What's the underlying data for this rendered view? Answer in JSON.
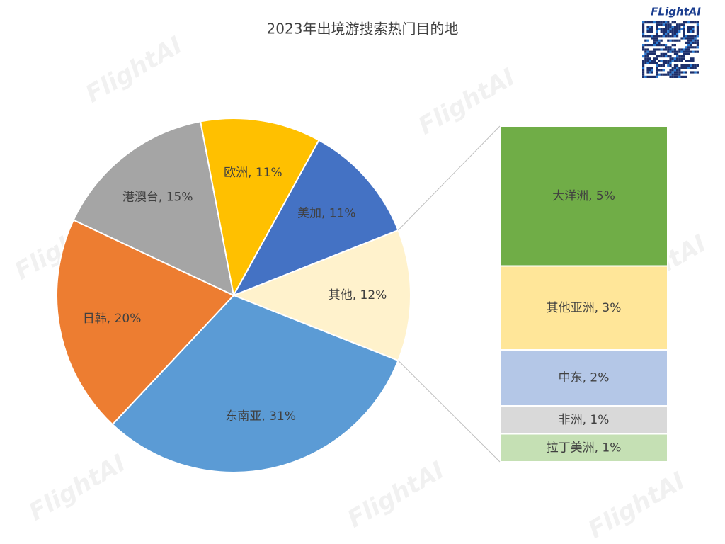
{
  "chart_data": {
    "type": "pie-of-bar",
    "title": "2023年出境游搜索热门目的地",
    "pie": {
      "values": [
        12,
        31,
        20,
        15,
        11,
        11
      ],
      "value_labels": [
        "其他, 12%",
        "东南亚, 31%",
        "日韩, 20%",
        "港澳台, 15%",
        "欧洲, 11%",
        "美加, 11%"
      ],
      "colors": [
        "#FFF2CC",
        "#5B9BD5",
        "#ED7D31",
        "#A5A5A5",
        "#FFC000",
        "#4472C4"
      ]
    },
    "bar": {
      "values": [
        5,
        3,
        2,
        1,
        1
      ],
      "value_labels": [
        "大洋洲, 5%",
        "其他亚洲, 3%",
        "中东, 2%",
        "非洲, 1%",
        "拉丁美洲, 1%"
      ],
      "colors": [
        "#70AD47",
        "#FFE699",
        "#B4C7E7",
        "#D9D9D9",
        "#C5E0B4"
      ]
    }
  },
  "logo": "FLightAI",
  "watermark": "FlightAI"
}
